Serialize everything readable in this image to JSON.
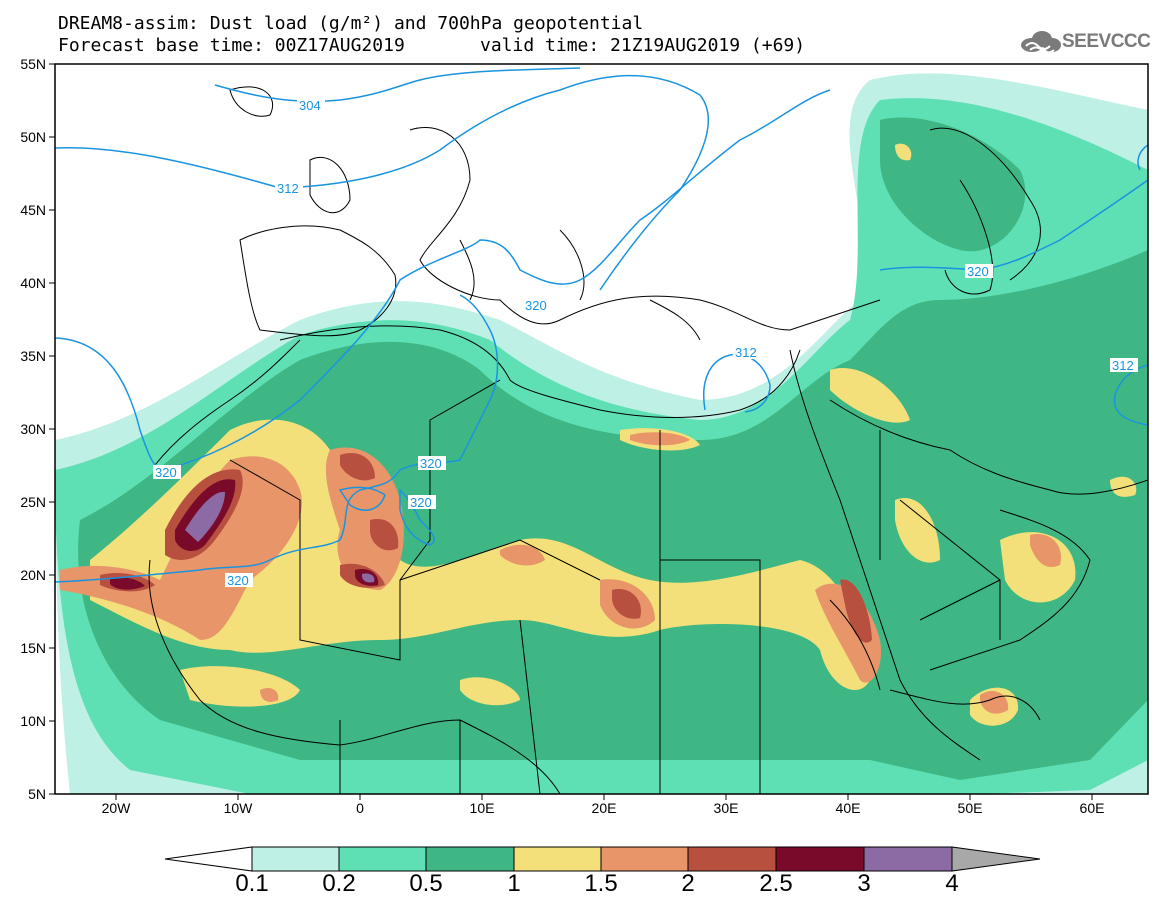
{
  "header": {
    "line1": "DREAM8-assim: Dust load (g/m²) and 700hPa geopotential",
    "line2": "Forecast base time: 00Z17AUG2019",
    "line2b": "valid time: 21Z19AUG2019 (+69)",
    "logo_text": "SEEVCCC"
  },
  "axes": {
    "lat_labels": [
      "55N",
      "50N",
      "45N",
      "40N",
      "35N",
      "30N",
      "25N",
      "20N",
      "15N",
      "10N",
      "5N"
    ],
    "lon_labels": [
      "20W",
      "10W",
      "0",
      "10E",
      "20E",
      "30E",
      "40E",
      "50E",
      "60E"
    ]
  },
  "contours": {
    "geopotential_labels": [
      "304",
      "312",
      "320",
      "320",
      "312",
      "320",
      "320",
      "320",
      "320",
      "312"
    ]
  },
  "colorbar": {
    "labels": [
      "0.1",
      "0.2",
      "0.5",
      "1",
      "1.5",
      "2",
      "2.5",
      "3",
      "4"
    ],
    "colors": [
      "#bff0e6",
      "#5ee0b4",
      "#3fb784",
      "#f3e07a",
      "#e8956a",
      "#b85040",
      "#7a0a2a",
      "#8c6aa4",
      "#a8a8a8"
    ]
  },
  "colors": {
    "land_outline": "#000000",
    "contour": "#1a94e0",
    "dust_01": "#bff0e6",
    "dust_02": "#5ee0b4",
    "dust_05": "#3fb784",
    "dust_1": "#f3e07a",
    "dust_15": "#e8956a",
    "dust_2": "#b85040",
    "dust_25": "#7a0a2a",
    "dust_3": "#8c6aa4"
  }
}
